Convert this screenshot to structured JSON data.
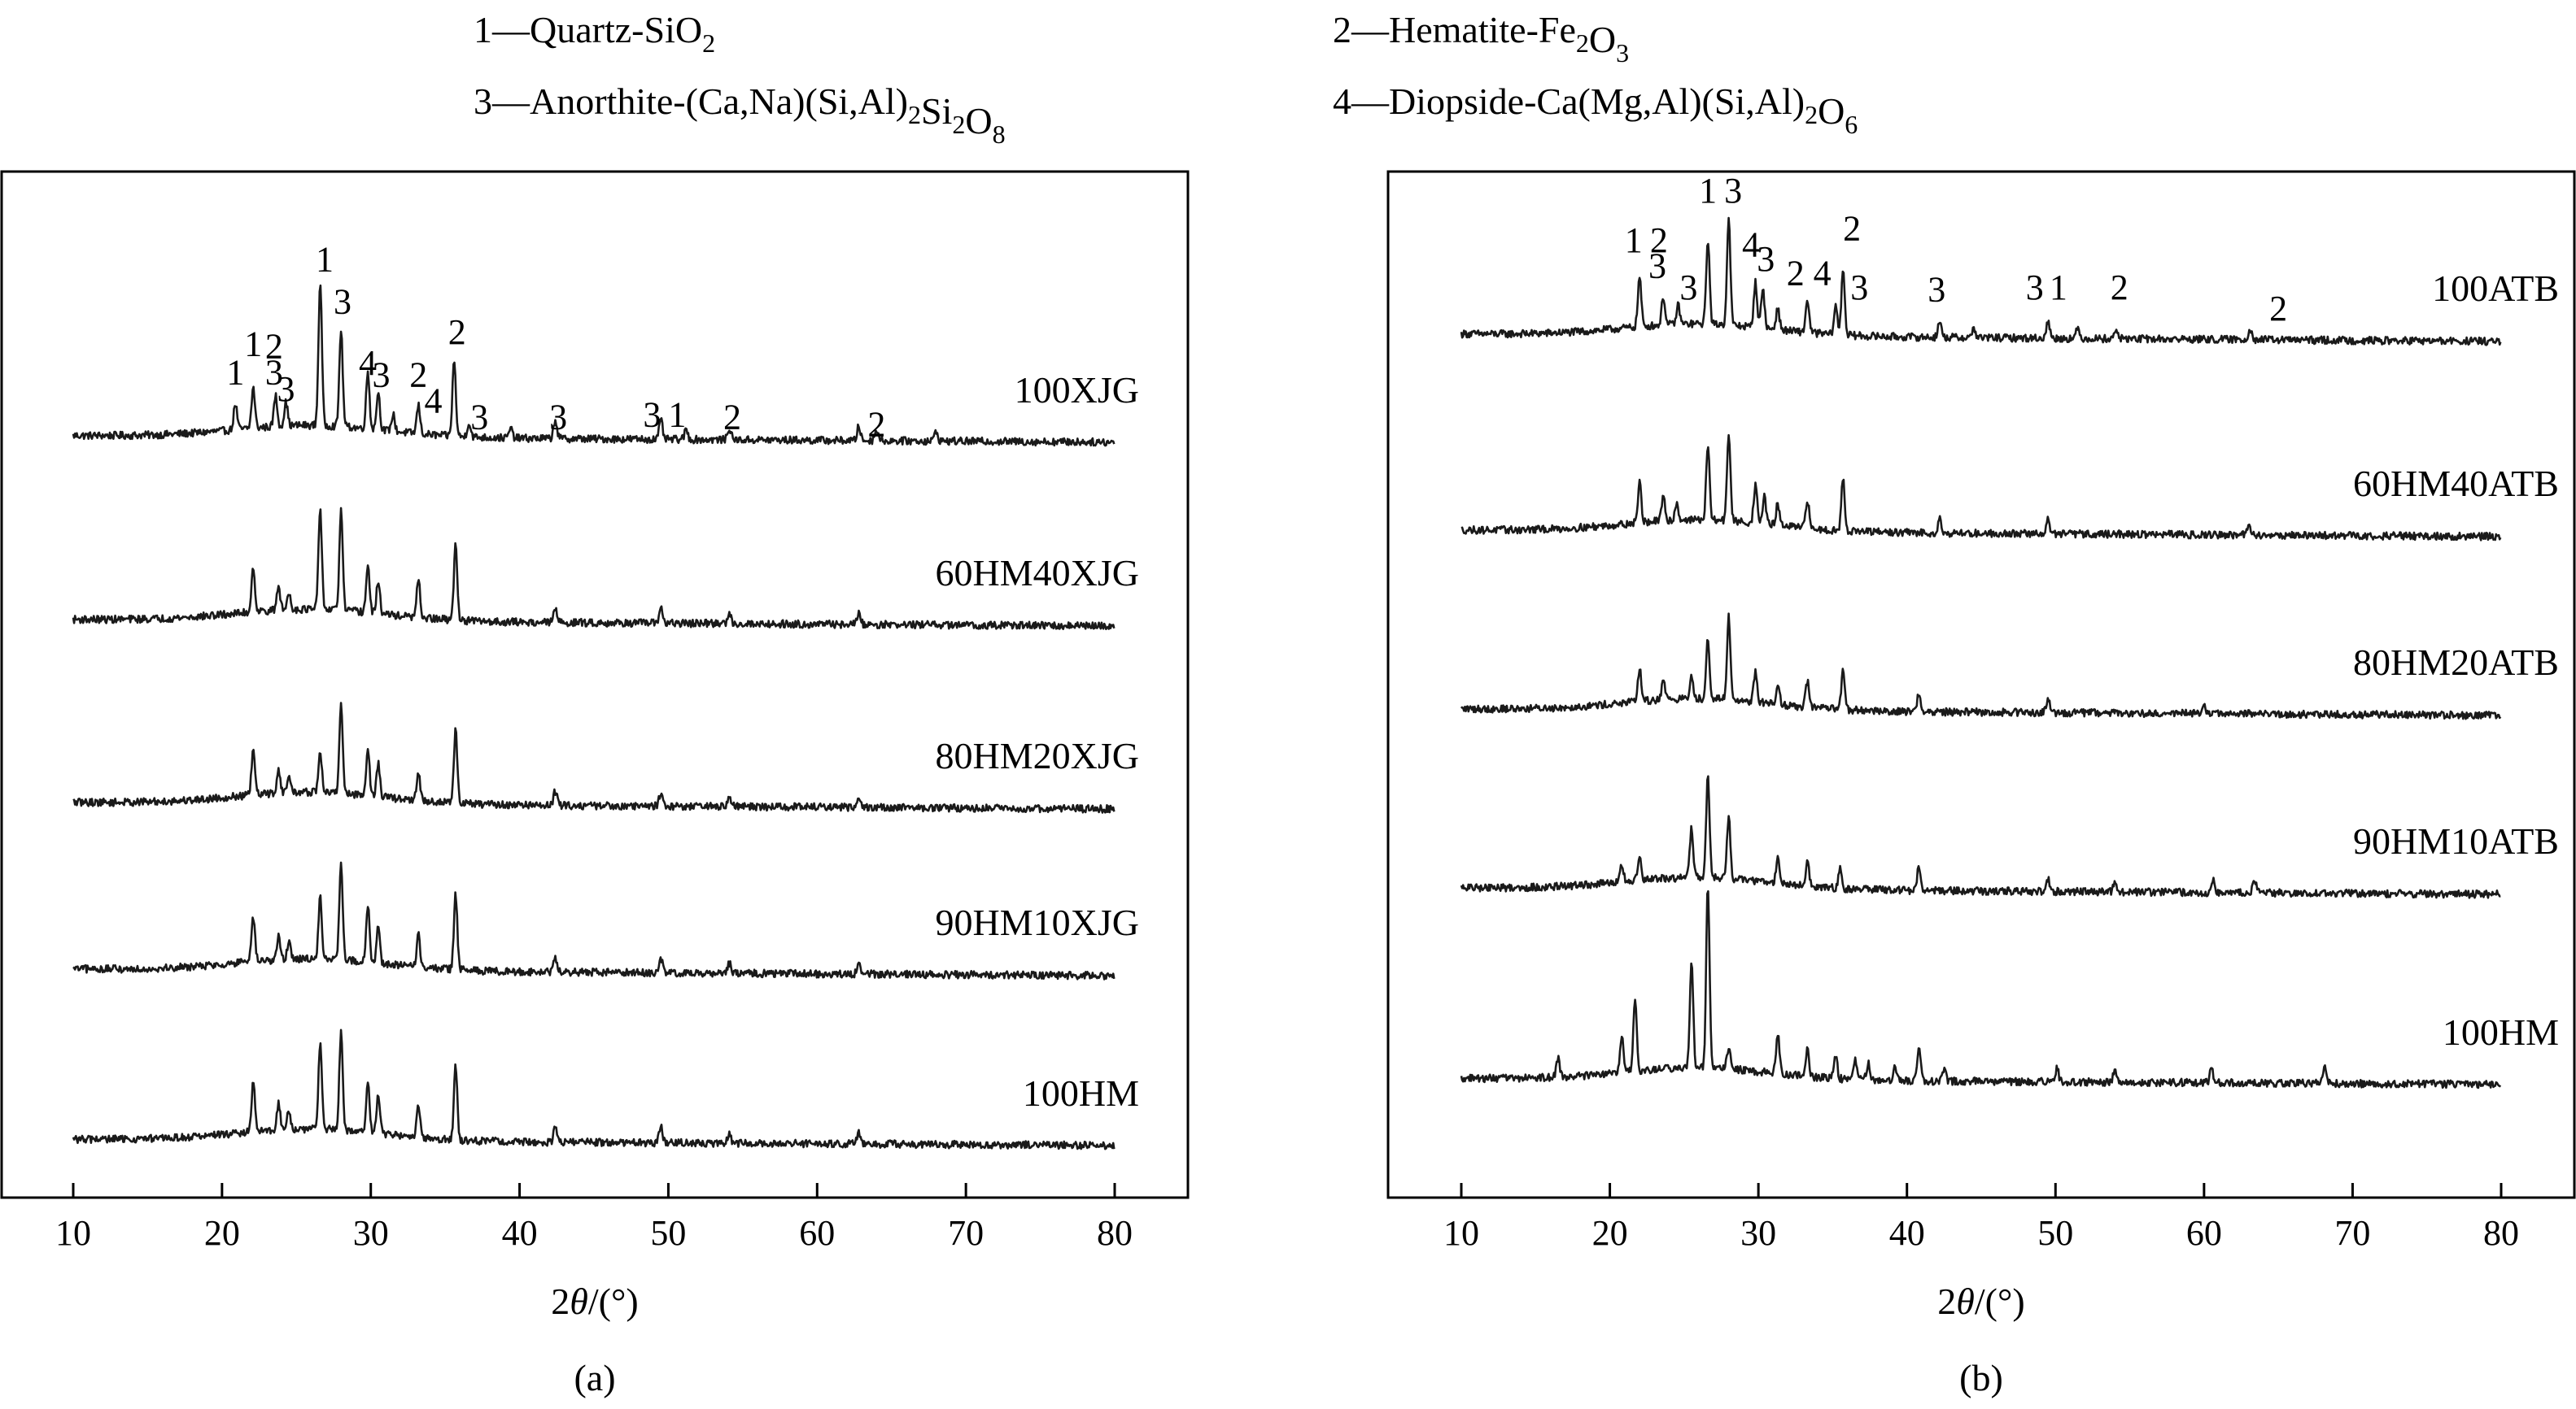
{
  "legend": [
    {
      "num": "1",
      "sep": "—",
      "name": "Quartz",
      "dash": "-",
      "formula": [
        [
          "Si",
          ""
        ],
        [
          "O",
          "2"
        ]
      ]
    },
    {
      "num": "2",
      "sep": "—",
      "name": "Hematite",
      "dash": "-",
      "formula": [
        [
          "Fe",
          "2"
        ],
        [
          "O",
          "3"
        ]
      ]
    },
    {
      "num": "3",
      "sep": "—",
      "name": "Anorthite",
      "dash": "-",
      "formula": [
        [
          "(Ca,Na)(Si,Al)",
          "2"
        ],
        [
          "Si",
          "2"
        ],
        [
          "O",
          "8"
        ]
      ]
    },
    {
      "num": "4",
      "sep": "—",
      "name": "Diopside",
      "dash": "-",
      "formula": [
        [
          "Ca(Mg,Al)(Si,Al)",
          "2"
        ],
        [
          "O",
          "6"
        ]
      ]
    }
  ],
  "chart_data": [
    {
      "type": "line",
      "panel_label": "(a)",
      "xlabel": {
        "prefix": "2",
        "theta": "θ",
        "suffix": "/(°)"
      },
      "ylabel": "",
      "xlim": [
        5,
        85
      ],
      "x_ticks": [
        10,
        20,
        30,
        40,
        50,
        60,
        70,
        80
      ],
      "y_ticks": [],
      "grid": false,
      "series": [
        {
          "name": "100XJG",
          "baseline": 0.86,
          "end": 0.72,
          "peaks": [
            [
              20.9,
              0.55
            ],
            [
              22.1,
              0.85
            ],
            [
              23.6,
              0.65
            ],
            [
              24.3,
              0.5
            ],
            [
              26.6,
              3.05
            ],
            [
              28.0,
              2.05
            ],
            [
              29.8,
              1.2
            ],
            [
              30.5,
              0.8
            ],
            [
              31.5,
              0.35
            ],
            [
              33.2,
              0.6
            ],
            [
              35.6,
              1.6
            ],
            [
              36.6,
              0.3
            ],
            [
              39.4,
              0.2
            ],
            [
              42.4,
              0.4
            ],
            [
              49.5,
              0.4
            ],
            [
              51.2,
              0.2
            ],
            [
              54.1,
              0.25
            ],
            [
              62.8,
              0.3
            ],
            [
              64.0,
              0.25
            ],
            [
              68.0,
              0.2
            ]
          ]
        },
        {
          "name": "60HM40XJG",
          "baseline": 0.84,
          "end": 0.7,
          "peaks": [
            [
              22.1,
              0.95
            ],
            [
              23.8,
              0.5
            ],
            [
              24.5,
              0.35
            ],
            [
              26.6,
              2.1
            ],
            [
              28.0,
              2.1
            ],
            [
              29.8,
              1.0
            ],
            [
              30.5,
              0.7
            ],
            [
              33.2,
              0.8
            ],
            [
              35.7,
              1.6
            ],
            [
              42.4,
              0.3
            ],
            [
              49.5,
              0.35
            ],
            [
              54.1,
              0.2
            ],
            [
              62.8,
              0.25
            ]
          ]
        },
        {
          "name": "80HM20XJG",
          "baseline": 0.84,
          "end": 0.7,
          "peaks": [
            [
              22.1,
              0.95
            ],
            [
              23.8,
              0.5
            ],
            [
              24.5,
              0.35
            ],
            [
              26.6,
              0.85
            ],
            [
              28.0,
              1.9
            ],
            [
              29.8,
              1.0
            ],
            [
              30.5,
              0.7
            ],
            [
              33.2,
              0.6
            ],
            [
              35.7,
              1.55
            ],
            [
              42.4,
              0.3
            ],
            [
              49.5,
              0.3
            ],
            [
              54.1,
              0.2
            ],
            [
              62.8,
              0.25
            ]
          ]
        },
        {
          "name": "90HM10XJG",
          "baseline": 0.84,
          "end": 0.7,
          "peaks": [
            [
              22.1,
              0.95
            ],
            [
              23.8,
              0.5
            ],
            [
              24.5,
              0.35
            ],
            [
              26.6,
              1.3
            ],
            [
              28.0,
              2.1
            ],
            [
              29.8,
              1.2
            ],
            [
              30.5,
              0.75
            ],
            [
              33.2,
              0.7
            ],
            [
              35.7,
              1.6
            ],
            [
              42.4,
              0.3
            ],
            [
              49.5,
              0.3
            ],
            [
              54.1,
              0.2
            ],
            [
              62.8,
              0.25
            ]
          ]
        },
        {
          "name": "100HM",
          "baseline": 0.85,
          "end": 0.72,
          "peaks": [
            [
              22.1,
              1.05
            ],
            [
              23.8,
              0.55
            ],
            [
              24.5,
              0.4
            ],
            [
              26.6,
              1.85
            ],
            [
              28.0,
              2.05
            ],
            [
              29.8,
              1.1
            ],
            [
              30.5,
              0.8
            ],
            [
              33.2,
              0.65
            ],
            [
              35.7,
              1.55
            ],
            [
              42.4,
              0.3
            ],
            [
              49.5,
              0.35
            ],
            [
              54.1,
              0.2
            ],
            [
              62.8,
              0.25
            ]
          ]
        }
      ],
      "peak_labels": [
        {
          "text": "1",
          "x": 20.9,
          "y": 1.95
        },
        {
          "text": "1",
          "x": 22.1,
          "y": 2.55
        },
        {
          "text": "3",
          "x": 23.5,
          "y": 1.95
        },
        {
          "text": "2",
          "x": 23.5,
          "y": 2.5
        },
        {
          "text": "3",
          "x": 24.3,
          "y": 1.6
        },
        {
          "text": "1",
          "x": 26.9,
          "y": 4.35
        },
        {
          "text": "3",
          "x": 28.1,
          "y": 3.45
        },
        {
          "text": "4",
          "x": 29.8,
          "y": 2.15
        },
        {
          "text": "3",
          "x": 30.7,
          "y": 1.9
        },
        {
          "text": "2",
          "x": 33.2,
          "y": 1.9
        },
        {
          "text": "4",
          "x": 34.2,
          "y": 1.35
        },
        {
          "text": "2",
          "x": 35.8,
          "y": 2.8
        },
        {
          "text": "3",
          "x": 37.3,
          "y": 1.0
        },
        {
          "text": "3",
          "x": 42.6,
          "y": 1.0
        },
        {
          "text": "3",
          "x": 48.9,
          "y": 1.05
        },
        {
          "text": "1",
          "x": 50.6,
          "y": 1.05
        },
        {
          "text": "2",
          "x": 54.3,
          "y": 1.0
        },
        {
          "text": "2",
          "x": 64.0,
          "y": 0.85
        }
      ]
    },
    {
      "type": "line",
      "panel_label": "(b)",
      "xlabel": {
        "prefix": "2",
        "theta": "θ",
        "suffix": "/(°)"
      },
      "ylabel": "",
      "xlim": [
        5,
        85
      ],
      "x_ticks": [
        10,
        20,
        30,
        40,
        50,
        60,
        70,
        80
      ],
      "y_ticks": [],
      "grid": false,
      "series": [
        {
          "name": "100ATB",
          "baseline": 0.86,
          "end": 0.7,
          "peaks": [
            [
              22.0,
              1.05
            ],
            [
              23.6,
              0.6
            ],
            [
              24.6,
              0.4
            ],
            [
              26.6,
              1.8
            ],
            [
              28.0,
              2.25
            ],
            [
              29.8,
              0.95
            ],
            [
              30.3,
              0.85
            ],
            [
              31.3,
              0.45
            ],
            [
              33.3,
              0.7
            ],
            [
              35.2,
              0.6
            ],
            [
              35.7,
              1.4
            ],
            [
              42.2,
              0.35
            ],
            [
              44.5,
              0.2
            ],
            [
              49.5,
              0.35
            ],
            [
              51.5,
              0.2
            ],
            [
              54.1,
              0.2
            ],
            [
              63.1,
              0.25
            ]
          ]
        },
        {
          "name": "60HM40ATB",
          "baseline": 0.84,
          "end": 0.7,
          "peaks": [
            [
              22.0,
              0.85
            ],
            [
              23.6,
              0.5
            ],
            [
              24.5,
              0.35
            ],
            [
              26.6,
              1.55
            ],
            [
              28.0,
              1.85
            ],
            [
              29.8,
              0.8
            ],
            [
              30.4,
              0.6
            ],
            [
              31.3,
              0.45
            ],
            [
              33.3,
              0.6
            ],
            [
              35.7,
              1.1
            ],
            [
              42.2,
              0.3
            ],
            [
              49.5,
              0.3
            ],
            [
              63.0,
              0.2
            ]
          ]
        },
        {
          "name": "80HM20ATB",
          "baseline": 0.84,
          "end": 0.7,
          "peaks": [
            [
              22.0,
              0.7
            ],
            [
              23.6,
              0.45
            ],
            [
              25.5,
              0.45
            ],
            [
              26.6,
              1.3
            ],
            [
              28.0,
              1.75
            ],
            [
              29.8,
              0.65
            ],
            [
              31.3,
              0.45
            ],
            [
              33.3,
              0.55
            ],
            [
              35.7,
              0.9
            ],
            [
              40.8,
              0.4
            ],
            [
              49.5,
              0.3
            ],
            [
              60.0,
              0.2
            ]
          ]
        },
        {
          "name": "90HM10ATB",
          "baseline": 0.84,
          "end": 0.7,
          "peaks": [
            [
              20.8,
              0.35
            ],
            [
              22.0,
              0.45
            ],
            [
              25.5,
              1.05
            ],
            [
              26.6,
              2.15
            ],
            [
              28.0,
              1.3
            ],
            [
              31.3,
              0.55
            ],
            [
              33.3,
              0.5
            ],
            [
              35.5,
              0.4
            ],
            [
              40.8,
              0.5
            ],
            [
              49.5,
              0.25
            ],
            [
              54.0,
              0.25
            ],
            [
              60.6,
              0.25
            ],
            [
              63.4,
              0.3
            ]
          ]
        },
        {
          "name": "100HM",
          "baseline": 0.85,
          "end": 0.72,
          "peaks": [
            [
              16.5,
              0.4
            ],
            [
              20.8,
              0.75
            ],
            [
              21.7,
              1.5
            ],
            [
              25.5,
              2.2
            ],
            [
              26.6,
              3.85
            ],
            [
              28.0,
              0.45
            ],
            [
              31.3,
              0.85
            ],
            [
              33.3,
              0.6
            ],
            [
              35.2,
              0.45
            ],
            [
              36.5,
              0.4
            ],
            [
              37.4,
              0.35
            ],
            [
              39.2,
              0.3
            ],
            [
              40.8,
              0.75
            ],
            [
              42.5,
              0.25
            ],
            [
              50.1,
              0.3
            ],
            [
              54.0,
              0.3
            ],
            [
              60.5,
              0.3
            ],
            [
              68.1,
              0.35
            ]
          ]
        }
      ],
      "peak_labels": [
        {
          "text": "1",
          "x": 21.6,
          "y": 2.6
        },
        {
          "text": "2",
          "x": 23.3,
          "y": 2.6
        },
        {
          "text": "3",
          "x": 23.2,
          "y": 2.05
        },
        {
          "text": "3",
          "x": 25.3,
          "y": 1.6
        },
        {
          "text": "1",
          "x": 26.6,
          "y": 3.65
        },
        {
          "text": "3",
          "x": 28.3,
          "y": 3.65
        },
        {
          "text": "4",
          "x": 29.5,
          "y": 2.5
        },
        {
          "text": "3",
          "x": 30.5,
          "y": 2.2
        },
        {
          "text": "2",
          "x": 32.5,
          "y": 1.9
        },
        {
          "text": "4",
          "x": 34.3,
          "y": 1.9
        },
        {
          "text": "2",
          "x": 36.3,
          "y": 2.85
        },
        {
          "text": "3",
          "x": 36.8,
          "y": 1.6
        },
        {
          "text": "3",
          "x": 42.0,
          "y": 1.55
        },
        {
          "text": "3",
          "x": 48.6,
          "y": 1.6
        },
        {
          "text": "1",
          "x": 50.2,
          "y": 1.6
        },
        {
          "text": "2",
          "x": 54.3,
          "y": 1.6
        },
        {
          "text": "2",
          "x": 65.0,
          "y": 1.15
        }
      ]
    }
  ]
}
